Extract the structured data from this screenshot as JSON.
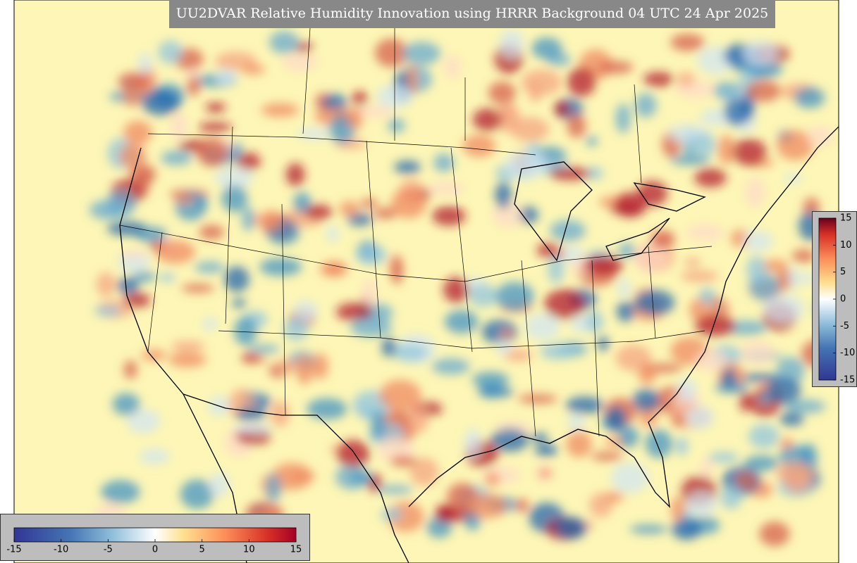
{
  "title": "UU2DVAR Relative Humidity Innovation using HRRR Background 04 UTC 24 Apr 2025",
  "bottom_colorbar": {
    "ticks": [
      -15,
      -10,
      -5,
      0,
      5,
      10,
      15
    ]
  },
  "right_colorbar": {
    "ticks": [
      -15,
      -10,
      -5,
      0,
      5,
      10,
      15
    ]
  }
}
